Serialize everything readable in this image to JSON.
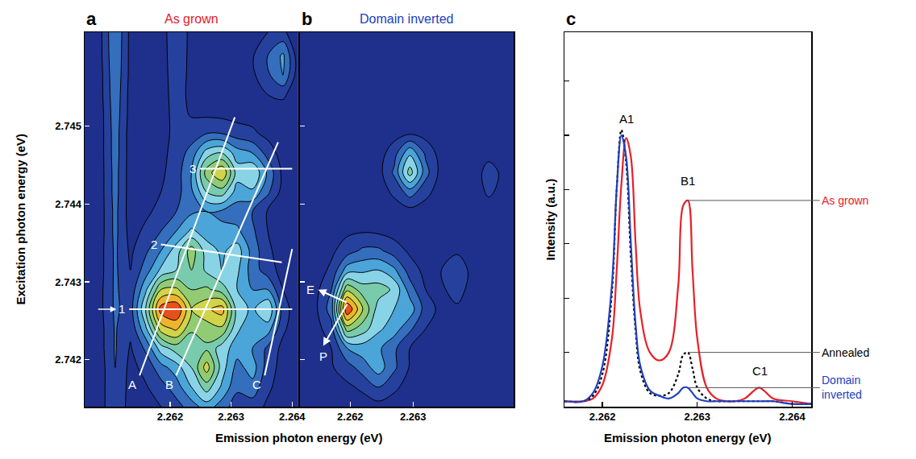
{
  "chart_data": [
    {
      "type": "contour",
      "panel_label": "a",
      "title": "As grown",
      "color": "#e8202a",
      "x_label": "Emission photon energy (eV)",
      "y_label": "Excitation photon energy (eV)",
      "x": [
        2.2606,
        2.26085,
        2.2611,
        2.26135,
        2.2616,
        2.26185,
        2.2621,
        2.26235,
        2.2626,
        2.26285,
        2.2631,
        2.26335,
        2.2636,
        2.26385,
        2.2641
      ],
      "y": [
        2.7414,
        2.74165,
        2.7419,
        2.74215,
        2.7424,
        2.74265,
        2.7429,
        2.74315,
        2.7434,
        2.74365,
        2.7439,
        2.74415,
        2.7444,
        2.74465,
        2.7449,
        2.74515,
        2.7454,
        2.74565,
        2.7459,
        2.7462
      ],
      "cells": [
        [
          0.3,
          0.5,
          2.0,
          0.5,
          0.6,
          1.0,
          1.6,
          2.5,
          3.5,
          2.5,
          1.5,
          1.5,
          0.8,
          0.4,
          0.3
        ],
        [
          0.3,
          0.5,
          2.0,
          0.6,
          0.9,
          1.6,
          2.5,
          4.0,
          5.5,
          3.8,
          2.2,
          2.6,
          1.2,
          0.5,
          0.3
        ],
        [
          0.3,
          0.5,
          2.0,
          0.7,
          1.3,
          2.6,
          3.5,
          5.0,
          7.5,
          4.5,
          2.6,
          3.5,
          1.5,
          0.6,
          0.3
        ],
        [
          0.3,
          0.6,
          2.1,
          0.9,
          2.2,
          4.5,
          5.5,
          5.2,
          5.8,
          4.5,
          3.5,
          3.0,
          1.8,
          0.7,
          0.3
        ],
        [
          0.3,
          0.6,
          2.1,
          1.2,
          3.8,
          7.5,
          8.2,
          6.2,
          6.5,
          6.8,
          4.2,
          3.2,
          3.5,
          1.2,
          0.3
        ],
        [
          0.3,
          0.7,
          2.2,
          1.5,
          5.0,
          9.5,
          10,
          7.0,
          7.8,
          8.5,
          4.5,
          3.8,
          5.0,
          1.5,
          0.3
        ],
        [
          0.3,
          0.7,
          2.2,
          1.3,
          3.8,
          7.0,
          7.2,
          6.0,
          6.2,
          5.5,
          4.0,
          3.0,
          3.0,
          1.0,
          0.3
        ],
        [
          0.3,
          0.6,
          2.2,
          1.0,
          2.5,
          4.2,
          5.0,
          6.0,
          4.8,
          4.0,
          4.2,
          2.5,
          1.5,
          0.6,
          0.3
        ],
        [
          0.3,
          0.6,
          2.2,
          0.8,
          1.8,
          3.0,
          4.5,
          6.5,
          4.5,
          3.8,
          4.5,
          2.6,
          1.2,
          0.5,
          0.3
        ],
        [
          0.3,
          0.5,
          2.3,
          0.6,
          1.2,
          2.0,
          3.0,
          4.2,
          3.5,
          3.2,
          3.2,
          2.2,
          1.0,
          0.4,
          0.3
        ],
        [
          0.3,
          0.5,
          2.3,
          0.5,
          0.8,
          1.3,
          2.0,
          2.8,
          3.0,
          2.8,
          2.5,
          2.0,
          0.9,
          0.4,
          0.3
        ],
        [
          0.3,
          0.5,
          2.4,
          0.5,
          0.6,
          1.0,
          1.6,
          2.8,
          5.0,
          5.5,
          3.5,
          3.8,
          2.2,
          0.6,
          0.3
        ],
        [
          0.3,
          0.5,
          2.4,
          0.5,
          0.5,
          0.8,
          1.5,
          3.0,
          6.5,
          8.0,
          4.5,
          5.0,
          2.8,
          0.7,
          0.3
        ],
        [
          0.3,
          0.5,
          2.5,
          0.5,
          0.5,
          0.7,
          1.4,
          2.4,
          4.5,
          5.0,
          3.5,
          3.0,
          1.6,
          0.5,
          0.3
        ],
        [
          0.3,
          0.5,
          2.5,
          0.5,
          0.4,
          0.6,
          1.3,
          1.5,
          2.0,
          2.0,
          1.5,
          1.2,
          0.7,
          0.4,
          0.3
        ],
        [
          0.3,
          0.5,
          2.6,
          0.6,
          0.4,
          0.5,
          1.4,
          0.9,
          0.8,
          0.7,
          0.6,
          0.6,
          0.5,
          0.4,
          0.3
        ],
        [
          0.3,
          0.6,
          2.7,
          0.6,
          0.4,
          0.5,
          1.5,
          0.7,
          0.5,
          0.5,
          0.5,
          0.6,
          1.0,
          1.2,
          0.3
        ],
        [
          0.3,
          0.6,
          2.8,
          0.7,
          0.4,
          0.5,
          1.6,
          0.7,
          0.5,
          0.5,
          0.5,
          0.8,
          1.8,
          3.0,
          0.4
        ],
        [
          0.3,
          0.7,
          2.9,
          0.7,
          0.4,
          0.5,
          1.7,
          0.7,
          0.5,
          0.5,
          0.5,
          0.9,
          2.0,
          3.2,
          0.4
        ],
        [
          0.3,
          0.7,
          3.0,
          0.7,
          0.4,
          0.5,
          1.8,
          0.7,
          0.5,
          0.5,
          0.5,
          0.6,
          1.0,
          1.2,
          0.3
        ]
      ],
      "zlim": [
        0,
        10
      ],
      "xlim": [
        2.2606,
        2.2641
      ],
      "ylim": [
        2.7414,
        2.7462
      ],
      "xticks": [
        2.262,
        2.263,
        2.264
      ],
      "yticks": [
        2.742,
        2.743,
        2.744,
        2.745
      ],
      "guides": [
        {
          "label": "A",
          "x": [
            2.2615,
            2.26306
          ],
          "y": [
            2.7418,
            2.74511
          ]
        },
        {
          "label": "B",
          "x": [
            2.2621,
            2.26377
          ],
          "y": [
            2.7418,
            2.74479
          ]
        },
        {
          "label": "C",
          "x": [
            2.26355,
            2.264
          ],
          "y": [
            2.7418,
            2.74342
          ]
        },
        {
          "label": "1",
          "x": [
            2.26133,
            2.264
          ],
          "y": [
            2.74265,
            2.74265
          ],
          "marker": "arrow"
        },
        {
          "label": "2",
          "x": [
            2.26185,
            2.26383
          ],
          "y": [
            2.74348,
            2.74325
          ]
        },
        {
          "label": "3",
          "x": [
            2.26249,
            2.264
          ],
          "y": [
            2.74445,
            2.74445
          ]
        }
      ]
    },
    {
      "type": "contour",
      "panel_label": "b",
      "title": "Domain inverted",
      "color": "#2040c0",
      "x": [
        2.2612,
        2.26145,
        2.2617,
        2.26195,
        2.2622,
        2.26245,
        2.2627,
        2.26295,
        2.2632,
        2.26345,
        2.2637,
        2.26395,
        2.2642,
        2.26445,
        2.2647
      ],
      "y": [
        2.7414,
        2.74165,
        2.7419,
        2.74215,
        2.7424,
        2.74265,
        2.7429,
        2.74315,
        2.7434,
        2.74365,
        2.7439,
        2.74415,
        2.7444,
        2.74465,
        2.7449,
        2.74515,
        2.7454,
        2.74565,
        2.7459,
        2.7462
      ],
      "cells": [
        [
          0.3,
          0.3,
          0.8,
          0.5,
          0.5,
          0.6,
          0.5,
          0.4,
          0.3,
          0.3,
          0.3,
          0.3,
          0.3,
          0.3,
          0.3
        ],
        [
          0.3,
          0.3,
          0.8,
          0.8,
          1.2,
          2.0,
          1.2,
          0.6,
          0.3,
          0.3,
          0.3,
          0.3,
          0.3,
          0.3,
          0.3
        ],
        [
          0.3,
          0.3,
          0.9,
          1.5,
          2.5,
          3.5,
          2.2,
          0.9,
          0.4,
          0.3,
          0.3,
          0.3,
          0.3,
          0.3,
          0.3
        ],
        [
          0.3,
          0.4,
          1.0,
          3.0,
          3.5,
          3.2,
          2.2,
          1.0,
          0.5,
          0.3,
          0.3,
          0.3,
          0.3,
          0.3,
          0.3
        ],
        [
          0.3,
          0.6,
          1.6,
          6.5,
          5.5,
          4.2,
          3.5,
          2.2,
          1.0,
          0.5,
          0.4,
          0.3,
          0.3,
          0.3,
          0.3
        ],
        [
          0.3,
          0.8,
          2.5,
          10,
          7.0,
          4.5,
          4.0,
          3.6,
          1.5,
          0.7,
          0.8,
          0.4,
          0.3,
          0.3,
          0.3
        ],
        [
          0.3,
          0.7,
          2.0,
          6.8,
          5.5,
          5.5,
          4.8,
          2.5,
          1.0,
          0.8,
          1.5,
          0.5,
          0.3,
          0.3,
          0.3
        ],
        [
          0.3,
          0.5,
          1.2,
          3.5,
          3.8,
          4.0,
          3.2,
          1.5,
          0.7,
          1.0,
          1.8,
          0.6,
          0.3,
          0.3,
          0.3
        ],
        [
          0.3,
          0.4,
          0.8,
          1.5,
          2.2,
          2.2,
          1.5,
          0.8,
          0.5,
          0.6,
          0.8,
          0.4,
          0.3,
          0.3,
          0.3
        ],
        [
          0.3,
          0.3,
          0.7,
          0.8,
          0.9,
          0.8,
          0.6,
          0.5,
          0.4,
          0.3,
          0.3,
          0.3,
          0.3,
          0.3,
          0.3
        ],
        [
          0.3,
          0.3,
          0.7,
          0.5,
          0.5,
          0.5,
          0.5,
          0.6,
          0.5,
          0.3,
          0.3,
          0.3,
          0.4,
          0.3,
          0.3
        ],
        [
          0.3,
          0.3,
          0.8,
          0.4,
          0.4,
          0.5,
          1.2,
          2.5,
          1.3,
          0.5,
          0.3,
          0.3,
          1.2,
          0.6,
          0.3
        ],
        [
          0.3,
          0.3,
          0.8,
          0.4,
          0.4,
          0.6,
          2.2,
          5.5,
          2.4,
          0.6,
          0.3,
          0.3,
          1.5,
          0.7,
          0.3
        ],
        [
          0.3,
          0.3,
          0.8,
          0.4,
          0.4,
          0.5,
          1.6,
          3.8,
          1.8,
          0.5,
          0.3,
          0.3,
          0.6,
          0.4,
          0.3
        ],
        [
          0.3,
          0.3,
          0.8,
          0.4,
          0.4,
          0.4,
          0.6,
          0.9,
          0.6,
          0.4,
          0.3,
          0.3,
          0.3,
          0.3,
          0.3
        ],
        [
          0.3,
          0.3,
          0.9,
          0.4,
          0.4,
          0.4,
          0.4,
          0.4,
          0.4,
          0.3,
          0.3,
          0.3,
          0.3,
          0.3,
          0.3
        ],
        [
          0.3,
          0.3,
          0.9,
          0.4,
          0.3,
          0.3,
          0.3,
          0.3,
          0.3,
          0.3,
          0.3,
          0.3,
          0.3,
          0.3,
          0.3
        ],
        [
          0.3,
          0.3,
          1.0,
          0.4,
          0.3,
          0.3,
          0.3,
          0.3,
          0.3,
          0.3,
          0.3,
          0.3,
          0.3,
          0.3,
          0.3
        ],
        [
          0.3,
          0.3,
          1.0,
          0.4,
          0.3,
          0.3,
          0.3,
          0.3,
          0.3,
          0.3,
          0.3,
          0.3,
          0.3,
          0.3,
          0.3
        ],
        [
          0.3,
          0.3,
          1.0,
          0.4,
          0.3,
          0.3,
          0.3,
          0.3,
          0.3,
          0.3,
          0.3,
          0.3,
          0.3,
          0.3,
          0.3
        ]
      ],
      "zlim": [
        0,
        10
      ],
      "xlim": [
        2.2612,
        2.2646
      ],
      "ylim": [
        2.7414,
        2.7462
      ],
      "xticks": [
        2.262,
        2.263
      ],
      "yticks": [
        2.742,
        2.743,
        2.744,
        2.745
      ],
      "tick_labels": "x",
      "arrows": [
        {
          "text": "E",
          "from": [
            2.26196,
            2.74273
          ],
          "to": [
            2.26149,
            2.7429
          ]
        },
        {
          "text": "P",
          "from": [
            2.26196,
            2.74273
          ],
          "to": [
            2.26157,
            2.74218
          ]
        }
      ]
    },
    {
      "type": "line",
      "panel_label": "c",
      "x_label": "Emission photon energy (eV)",
      "y_label": "Intensity (a.u.)",
      "x": [
        2.2616,
        2.2618,
        2.2619,
        2.262,
        2.2621,
        2.26215,
        2.2622,
        2.26225,
        2.2623,
        2.26235,
        2.2624,
        2.2625,
        2.2626,
        2.2627,
        2.2628,
        2.26285,
        2.2629,
        2.26295,
        2.263,
        2.2631,
        2.2632,
        2.2633,
        2.2634,
        2.2635,
        2.2636,
        2.26365,
        2.2637,
        2.2638,
        2.264,
        2.2642
      ],
      "series": [
        {
          "name": "As grown",
          "color": "#e8202a",
          "line_style": "solid",
          "label_at": [
            2.2629,
            0.76
          ],
          "values": [
            0.02,
            0.02,
            0.03,
            0.08,
            0.25,
            0.5,
            0.82,
            0.99,
            0.92,
            0.6,
            0.35,
            0.2,
            0.17,
            0.2,
            0.45,
            0.74,
            0.76,
            0.5,
            0.25,
            0.07,
            0.03,
            0.02,
            0.02,
            0.03,
            0.06,
            0.07,
            0.06,
            0.03,
            0.02,
            0.01
          ]
        },
        {
          "name": "Annealed",
          "color": "#000000",
          "line_style": "dotted",
          "label_at": [
            2.2629,
            0.2
          ],
          "values": [
            0.02,
            0.02,
            0.04,
            0.12,
            0.42,
            0.8,
            1.02,
            0.9,
            0.55,
            0.28,
            0.13,
            0.05,
            0.04,
            0.05,
            0.12,
            0.19,
            0.2,
            0.14,
            0.07,
            0.03,
            0.02,
            0.02,
            0.02,
            0.02,
            0.02,
            0.02,
            0.02,
            0.02,
            0.01,
            0.01
          ]
        },
        {
          "name": "Domain inverted",
          "color": "#2040c0",
          "line_style": "solid",
          "label_at": [
            2.2629,
            0.07
          ],
          "values": [
            0.02,
            0.02,
            0.05,
            0.15,
            0.45,
            0.8,
            1.0,
            0.92,
            0.6,
            0.3,
            0.15,
            0.06,
            0.04,
            0.03,
            0.05,
            0.07,
            0.07,
            0.05,
            0.03,
            0.02,
            0.02,
            0.02,
            0.02,
            0.02,
            0.02,
            0.02,
            0.02,
            0.02,
            0.01,
            0.01
          ]
        }
      ],
      "annotations": [
        {
          "text": "A1",
          "x": 2.26225,
          "y": 1.03
        },
        {
          "text": "B1",
          "x": 2.2629,
          "y": 0.8
        },
        {
          "text": "C1",
          "x": 2.26366,
          "y": 0.1
        }
      ],
      "xlim": [
        2.2616,
        2.2642
      ],
      "ylim": [
        0,
        1.38
      ],
      "xticks": [
        2.262,
        2.263,
        2.264
      ],
      "yticks": [
        0.2,
        0.4,
        0.6,
        0.8,
        1.0,
        1.2
      ],
      "tick_labels": "x"
    }
  ]
}
